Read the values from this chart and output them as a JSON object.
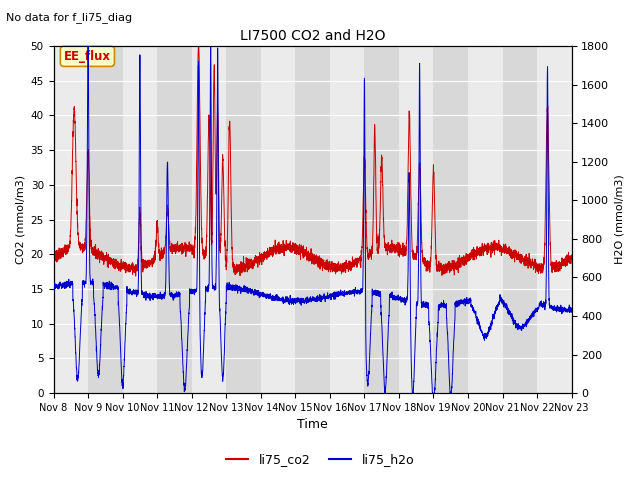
{
  "title": "LI7500 CO2 and H2O",
  "subtitle": "No data for f_li75_diag",
  "xlabel": "Time",
  "ylabel_left": "CO2 (mmol/m3)",
  "ylabel_right": "H2O (mmol/m3)",
  "xlim": [
    0,
    15
  ],
  "ylim_left": [
    0,
    50
  ],
  "ylim_right": [
    0,
    1800
  ],
  "xtick_labels": [
    "Nov 8",
    "Nov 9",
    "Nov 10",
    "Nov 11",
    "Nov 12",
    "Nov 13",
    "Nov 14",
    "Nov 15",
    "Nov 16",
    "Nov 17",
    "Nov 18",
    "Nov 19",
    "Nov 20",
    "Nov 21",
    "Nov 22",
    "Nov 23"
  ],
  "yticks_left": [
    0,
    5,
    10,
    15,
    20,
    25,
    30,
    35,
    40,
    45,
    50
  ],
  "yticks_right": [
    0,
    200,
    400,
    600,
    800,
    1000,
    1200,
    1400,
    1600,
    1800
  ],
  "color_co2": "#cc0000",
  "color_h2o": "#0000cc",
  "legend_labels": [
    "li75_co2",
    "li75_h2o"
  ],
  "annotation_text": "EE_flux",
  "background_color": "#ffffff",
  "plot_bg_light": "#ebebeb",
  "plot_bg_dark": "#d8d8d8",
  "grid_color": "#ffffff",
  "annotation_box_facecolor": "#ffffcc",
  "annotation_box_edgecolor": "#cc8800",
  "annotation_text_color": "#cc0000"
}
